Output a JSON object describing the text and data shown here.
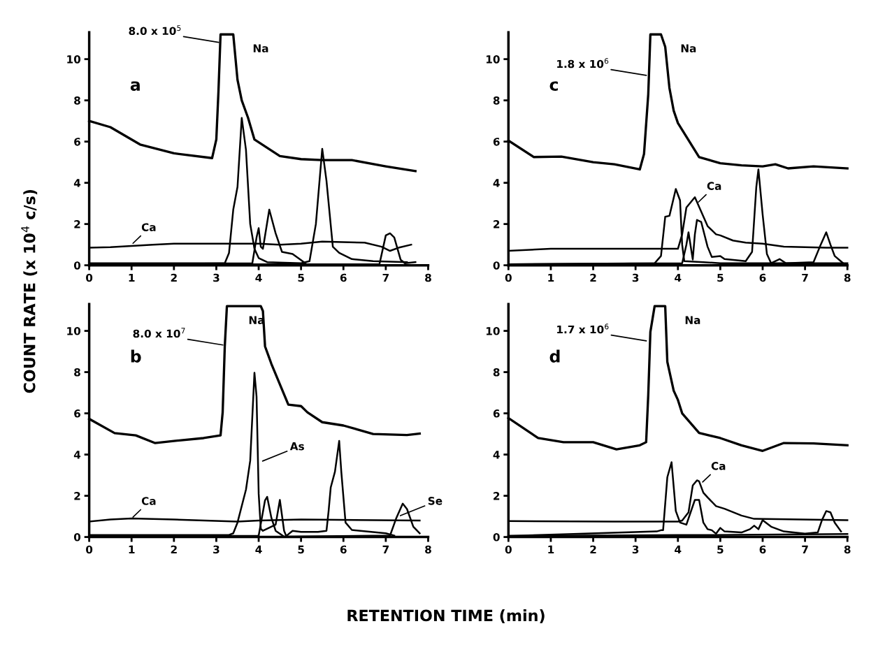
{
  "chart_data": [
    {
      "type": "line",
      "title": "a",
      "xlabel": "RETENTION TIME (min)",
      "ylabel": "COUNT RATE (x 10$^{4}$ c/s)",
      "xlim": [
        0,
        8
      ],
      "ylim": [
        0,
        11.3
      ],
      "xticks": [
        0,
        1,
        2,
        3,
        4,
        5,
        6,
        7,
        8
      ],
      "yticks": [
        0,
        2,
        4,
        6,
        8,
        10
      ],
      "grid": false,
      "legend": false,
      "series": [
        {
          "color": "#000000",
          "x": [
            0,
            0.5,
            1.2,
            2,
            2.9,
            3.0,
            3.05,
            3.1,
            3.4,
            3.5,
            3.6,
            3.75,
            3.9,
            4.5,
            5,
            5.5,
            6.2,
            7,
            7.7
          ],
          "values": [
            7.0,
            6.7,
            5.86,
            5.43,
            5.2,
            6.1,
            8.4,
            11.2,
            11.2,
            9.0,
            8.0,
            7.15,
            6.1,
            5.3,
            5.15,
            5.1,
            5.1,
            4.8,
            4.57
          ]
        },
        {
          "color": "#000000",
          "x": [
            0,
            0.5,
            1.5,
            2,
            3,
            3.5,
            4.0,
            4.5,
            5,
            5.5,
            6.5,
            6.9,
            7.1,
            7.3,
            7.6
          ],
          "values": [
            0.85,
            0.88,
            1.0,
            1.05,
            1.05,
            1.05,
            1.05,
            1.0,
            1.05,
            1.15,
            1.1,
            0.9,
            0.7,
            0.85,
            1.0
          ]
        },
        {
          "color": "#000000",
          "x": [
            0,
            3.1,
            3.2,
            3.3,
            3.4,
            3.5,
            3.6,
            3.7,
            3.8,
            3.9,
            4.0,
            4.2,
            5,
            5.2,
            5.35,
            5.5,
            5.6,
            5.75,
            5.9,
            6.2,
            6.7,
            7.5
          ],
          "values": [
            0.1,
            0.1,
            0.1,
            0.6,
            2.7,
            3.8,
            7.15,
            5.6,
            2.0,
            0.8,
            0.35,
            0.15,
            0.1,
            0.2,
            2.0,
            5.65,
            4.1,
            0.9,
            0.6,
            0.3,
            0.2,
            0.15
          ]
        },
        {
          "color": "#000000",
          "x": [
            0,
            3.85,
            3.95,
            4.0,
            4.05,
            4.1,
            4.25,
            4.4,
            4.55,
            4.8,
            5.0,
            5.1
          ],
          "values": [
            0.05,
            0.1,
            1.35,
            1.8,
            0.9,
            0.8,
            2.7,
            1.55,
            0.65,
            0.55,
            0.25,
            0.1
          ]
        },
        {
          "color": "#000000",
          "x": [
            0,
            6.85,
            7.0,
            7.1,
            7.2,
            7.35,
            7.45,
            7.7
          ],
          "values": [
            0.05,
            0.05,
            1.45,
            1.55,
            1.35,
            0.27,
            0.1,
            0.15
          ]
        }
      ],
      "annotations": [
        {
          "text": "8.0 x 10$^{5}$",
          "x": 3.1,
          "y": 10.8
        },
        {
          "text": "Na",
          "x": 3.4,
          "y": 11.2
        },
        {
          "text": "Ca",
          "x": 1.0,
          "y": 1.0
        }
      ]
    },
    {
      "type": "line",
      "title": "c",
      "xlim": [
        0,
        8
      ],
      "ylim": [
        0,
        11.3
      ],
      "xticks": [
        0,
        1,
        2,
        3,
        4,
        5,
        6,
        7,
        8
      ],
      "yticks": [
        0,
        2,
        4,
        6,
        8,
        10
      ],
      "grid": false,
      "legend": false,
      "series": [
        {
          "color": "#000000",
          "x": [
            0,
            0.6,
            1.25,
            2,
            2.5,
            3.1,
            3.2,
            3.3,
            3.35,
            3.6,
            3.7,
            3.8,
            3.9,
            4.0,
            4.5,
            5.0,
            5.5,
            6.0,
            6.3,
            6.6,
            7.2,
            8.0
          ],
          "values": [
            6.05,
            5.25,
            5.27,
            5.0,
            4.9,
            4.65,
            5.4,
            8.3,
            11.2,
            11.2,
            10.6,
            8.6,
            7.5,
            6.9,
            5.25,
            4.95,
            4.85,
            4.8,
            4.9,
            4.7,
            4.8,
            4.7
          ]
        },
        {
          "color": "#000000",
          "x": [
            0,
            1,
            3,
            4.0,
            4.1,
            4.2,
            4.4,
            4.7,
            4.9,
            5.0,
            5.3,
            5.6,
            6.0,
            6.5,
            7.5,
            8
          ],
          "values": [
            0.7,
            0.8,
            0.8,
            0.8,
            1.5,
            2.8,
            3.3,
            1.9,
            1.5,
            1.45,
            1.2,
            1.1,
            1.05,
            0.9,
            0.85,
            0.85
          ]
        },
        {
          "color": "#000000",
          "x": [
            0,
            3.45,
            3.6,
            3.7,
            3.8,
            3.95,
            4.05,
            4.1,
            4.15,
            4.6,
            5,
            8
          ],
          "values": [
            0.05,
            0.1,
            0.45,
            2.35,
            2.4,
            3.7,
            3.15,
            1.0,
            0.2,
            0.15,
            0.1,
            0.1
          ]
        },
        {
          "color": "#000000",
          "x": [
            0,
            4.1,
            4.2,
            4.25,
            4.35,
            4.4,
            4.45,
            4.55,
            4.7,
            4.8,
            5.0,
            5.1,
            5.6,
            5.75,
            5.85,
            5.9,
            6.0,
            6.1,
            6.2,
            6.4,
            6.55,
            7.2,
            7.35,
            7.5,
            7.6,
            7.7,
            7.9
          ],
          "values": [
            0.05,
            0.1,
            1.0,
            1.6,
            0.28,
            1.5,
            2.2,
            2.1,
            0.9,
            0.4,
            0.45,
            0.3,
            0.2,
            0.65,
            3.8,
            4.65,
            2.45,
            0.55,
            0.1,
            0.3,
            0.1,
            0.15,
            0.9,
            1.6,
            1.0,
            0.45,
            0.1
          ]
        }
      ],
      "annotations": [
        {
          "text": "1.8 x 10$^{6}$",
          "x": 3.3,
          "y": 9.2
        },
        {
          "text": "Na",
          "x": 3.6,
          "y": 11.2
        },
        {
          "text": "Ca",
          "x": 4.45,
          "y": 3.0
        }
      ]
    },
    {
      "type": "line",
      "title": "b",
      "xlim": [
        0,
        8
      ],
      "ylim": [
        0,
        11.3
      ],
      "xticks": [
        0,
        1,
        2,
        3,
        4,
        5,
        6,
        7,
        8
      ],
      "yticks": [
        0,
        2,
        4,
        6,
        8,
        10
      ],
      "grid": false,
      "legend": false,
      "series": [
        {
          "color": "#000000",
          "x": [
            0,
            0.6,
            1.1,
            1.55,
            2,
            2.7,
            3.1,
            3.15,
            3.2,
            3.25,
            4.05,
            4.1,
            4.15,
            4.3,
            4.7,
            5.0,
            5.15,
            5.5,
            6.0,
            6.7,
            7.5,
            7.8
          ],
          "values": [
            5.73,
            5.04,
            4.93,
            4.56,
            4.66,
            4.8,
            4.93,
            6.05,
            9.25,
            11.2,
            11.2,
            10.96,
            9.25,
            8.4,
            6.42,
            6.35,
            6.05,
            5.57,
            5.41,
            5.0,
            4.95,
            5.02
          ]
        },
        {
          "color": "#000000",
          "x": [
            0,
            0.5,
            1,
            2,
            3.5,
            4,
            5,
            7.8
          ],
          "values": [
            0.75,
            0.85,
            0.9,
            0.85,
            0.75,
            0.8,
            0.85,
            0.8
          ]
        },
        {
          "color": "#000000",
          "x": [
            0,
            3.3,
            3.4,
            3.5,
            3.7,
            3.8,
            3.9,
            3.95,
            4.0,
            4.05,
            4.1,
            4.4,
            4.5,
            4.6,
            4.65,
            4.8,
            5.0,
            5.4,
            5.6,
            5.65,
            5.7,
            5.8,
            5.9,
            5.95,
            6.05,
            6.2,
            7.0,
            7.2
          ],
          "values": [
            0.1,
            0.1,
            0.18,
            0.7,
            2.3,
            3.7,
            7.97,
            6.8,
            2.1,
            0.4,
            0.3,
            0.6,
            1.8,
            0.3,
            0.05,
            0.3,
            0.25,
            0.25,
            0.3,
            1.25,
            2.4,
            3.17,
            4.66,
            3.17,
            0.7,
            0.34,
            0.18,
            0.07
          ]
        },
        {
          "color": "#000000",
          "x": [
            0,
            3.95,
            4.0,
            4.15,
            4.2,
            4.3,
            4.4,
            4.6,
            7.1,
            7.25,
            7.4,
            7.5,
            7.65,
            7.8
          ],
          "values": [
            0.05,
            0.05,
            0.07,
            1.78,
            1.95,
            0.93,
            0.3,
            0.02,
            0.07,
            0.93,
            1.62,
            1.36,
            0.5,
            0.18
          ]
        }
      ],
      "annotations": [
        {
          "text": "8.0 x 10$^{7}$",
          "x": 3.2,
          "y": 9.3
        },
        {
          "text": "Na",
          "x": 3.3,
          "y": 11.2
        },
        {
          "text": "Ca",
          "x": 1.0,
          "y": 0.9
        },
        {
          "text": "As",
          "x": 4.05,
          "y": 3.65
        },
        {
          "text": "Se",
          "x": 7.3,
          "y": 1.0
        }
      ]
    },
    {
      "type": "line",
      "title": "d",
      "xlim": [
        0,
        8
      ],
      "ylim": [
        0,
        11.3
      ],
      "xticks": [
        0,
        1,
        2,
        3,
        4,
        5,
        6,
        7,
        8
      ],
      "yticks": [
        0,
        2,
        4,
        6,
        8,
        10
      ],
      "grid": false,
      "legend": false,
      "series": [
        {
          "color": "#000000",
          "x": [
            0,
            0.7,
            1.3,
            2,
            2.55,
            3.1,
            3.25,
            3.3,
            3.35,
            3.45,
            3.7,
            3.75,
            3.9,
            4.0,
            4.1,
            4.5,
            5.0,
            5.5,
            6.0,
            6.5,
            7.2,
            8.0
          ],
          "values": [
            5.77,
            4.8,
            4.6,
            4.6,
            4.25,
            4.45,
            4.6,
            6.9,
            9.95,
            11.2,
            11.2,
            8.5,
            7.1,
            6.65,
            6.0,
            5.05,
            4.8,
            4.45,
            4.18,
            4.56,
            4.54,
            4.45
          ]
        },
        {
          "color": "#000000",
          "x": [
            0,
            2.5,
            4.0,
            4.1,
            4.25,
            4.35,
            4.45,
            4.5,
            4.6,
            4.7,
            4.9,
            5.1,
            5.5,
            5.8,
            8
          ],
          "values": [
            0.77,
            0.75,
            0.75,
            0.8,
            1.2,
            2.5,
            2.75,
            2.7,
            2.15,
            1.92,
            1.5,
            1.37,
            1.04,
            0.88,
            0.82
          ]
        },
        {
          "color": "#000000",
          "x": [
            0,
            3.5,
            3.6,
            3.65,
            3.75,
            3.85,
            3.95,
            4.05,
            4.2,
            4.4,
            4.5,
            4.6,
            4.7,
            4.8,
            4.9,
            5.0,
            5.1,
            5.5,
            5.7,
            5.8,
            5.9,
            6.0,
            6.2,
            6.5,
            7.0,
            7.3,
            7.4,
            7.5,
            7.6,
            7.7,
            7.85
          ],
          "values": [
            0.05,
            0.27,
            0.33,
            0.33,
            2.9,
            3.63,
            1.26,
            0.7,
            0.6,
            1.8,
            1.8,
            0.7,
            0.38,
            0.33,
            0.16,
            0.44,
            0.27,
            0.22,
            0.38,
            0.55,
            0.38,
            0.82,
            0.5,
            0.27,
            0.16,
            0.22,
            0.82,
            1.26,
            1.2,
            0.7,
            0.27
          ]
        },
        {
          "color": "#000000",
          "x": [
            0,
            4.0,
            4.8,
            8
          ],
          "values": [
            0.05,
            0.1,
            0.1,
            0.15
          ]
        }
      ],
      "annotations": [
        {
          "text": "1.7 x 10$^{6}$",
          "x": 3.3,
          "y": 9.5
        },
        {
          "text": "Na",
          "x": 3.7,
          "y": 11.2
        },
        {
          "text": "Ca",
          "x": 4.55,
          "y": 2.6
        }
      ]
    }
  ]
}
